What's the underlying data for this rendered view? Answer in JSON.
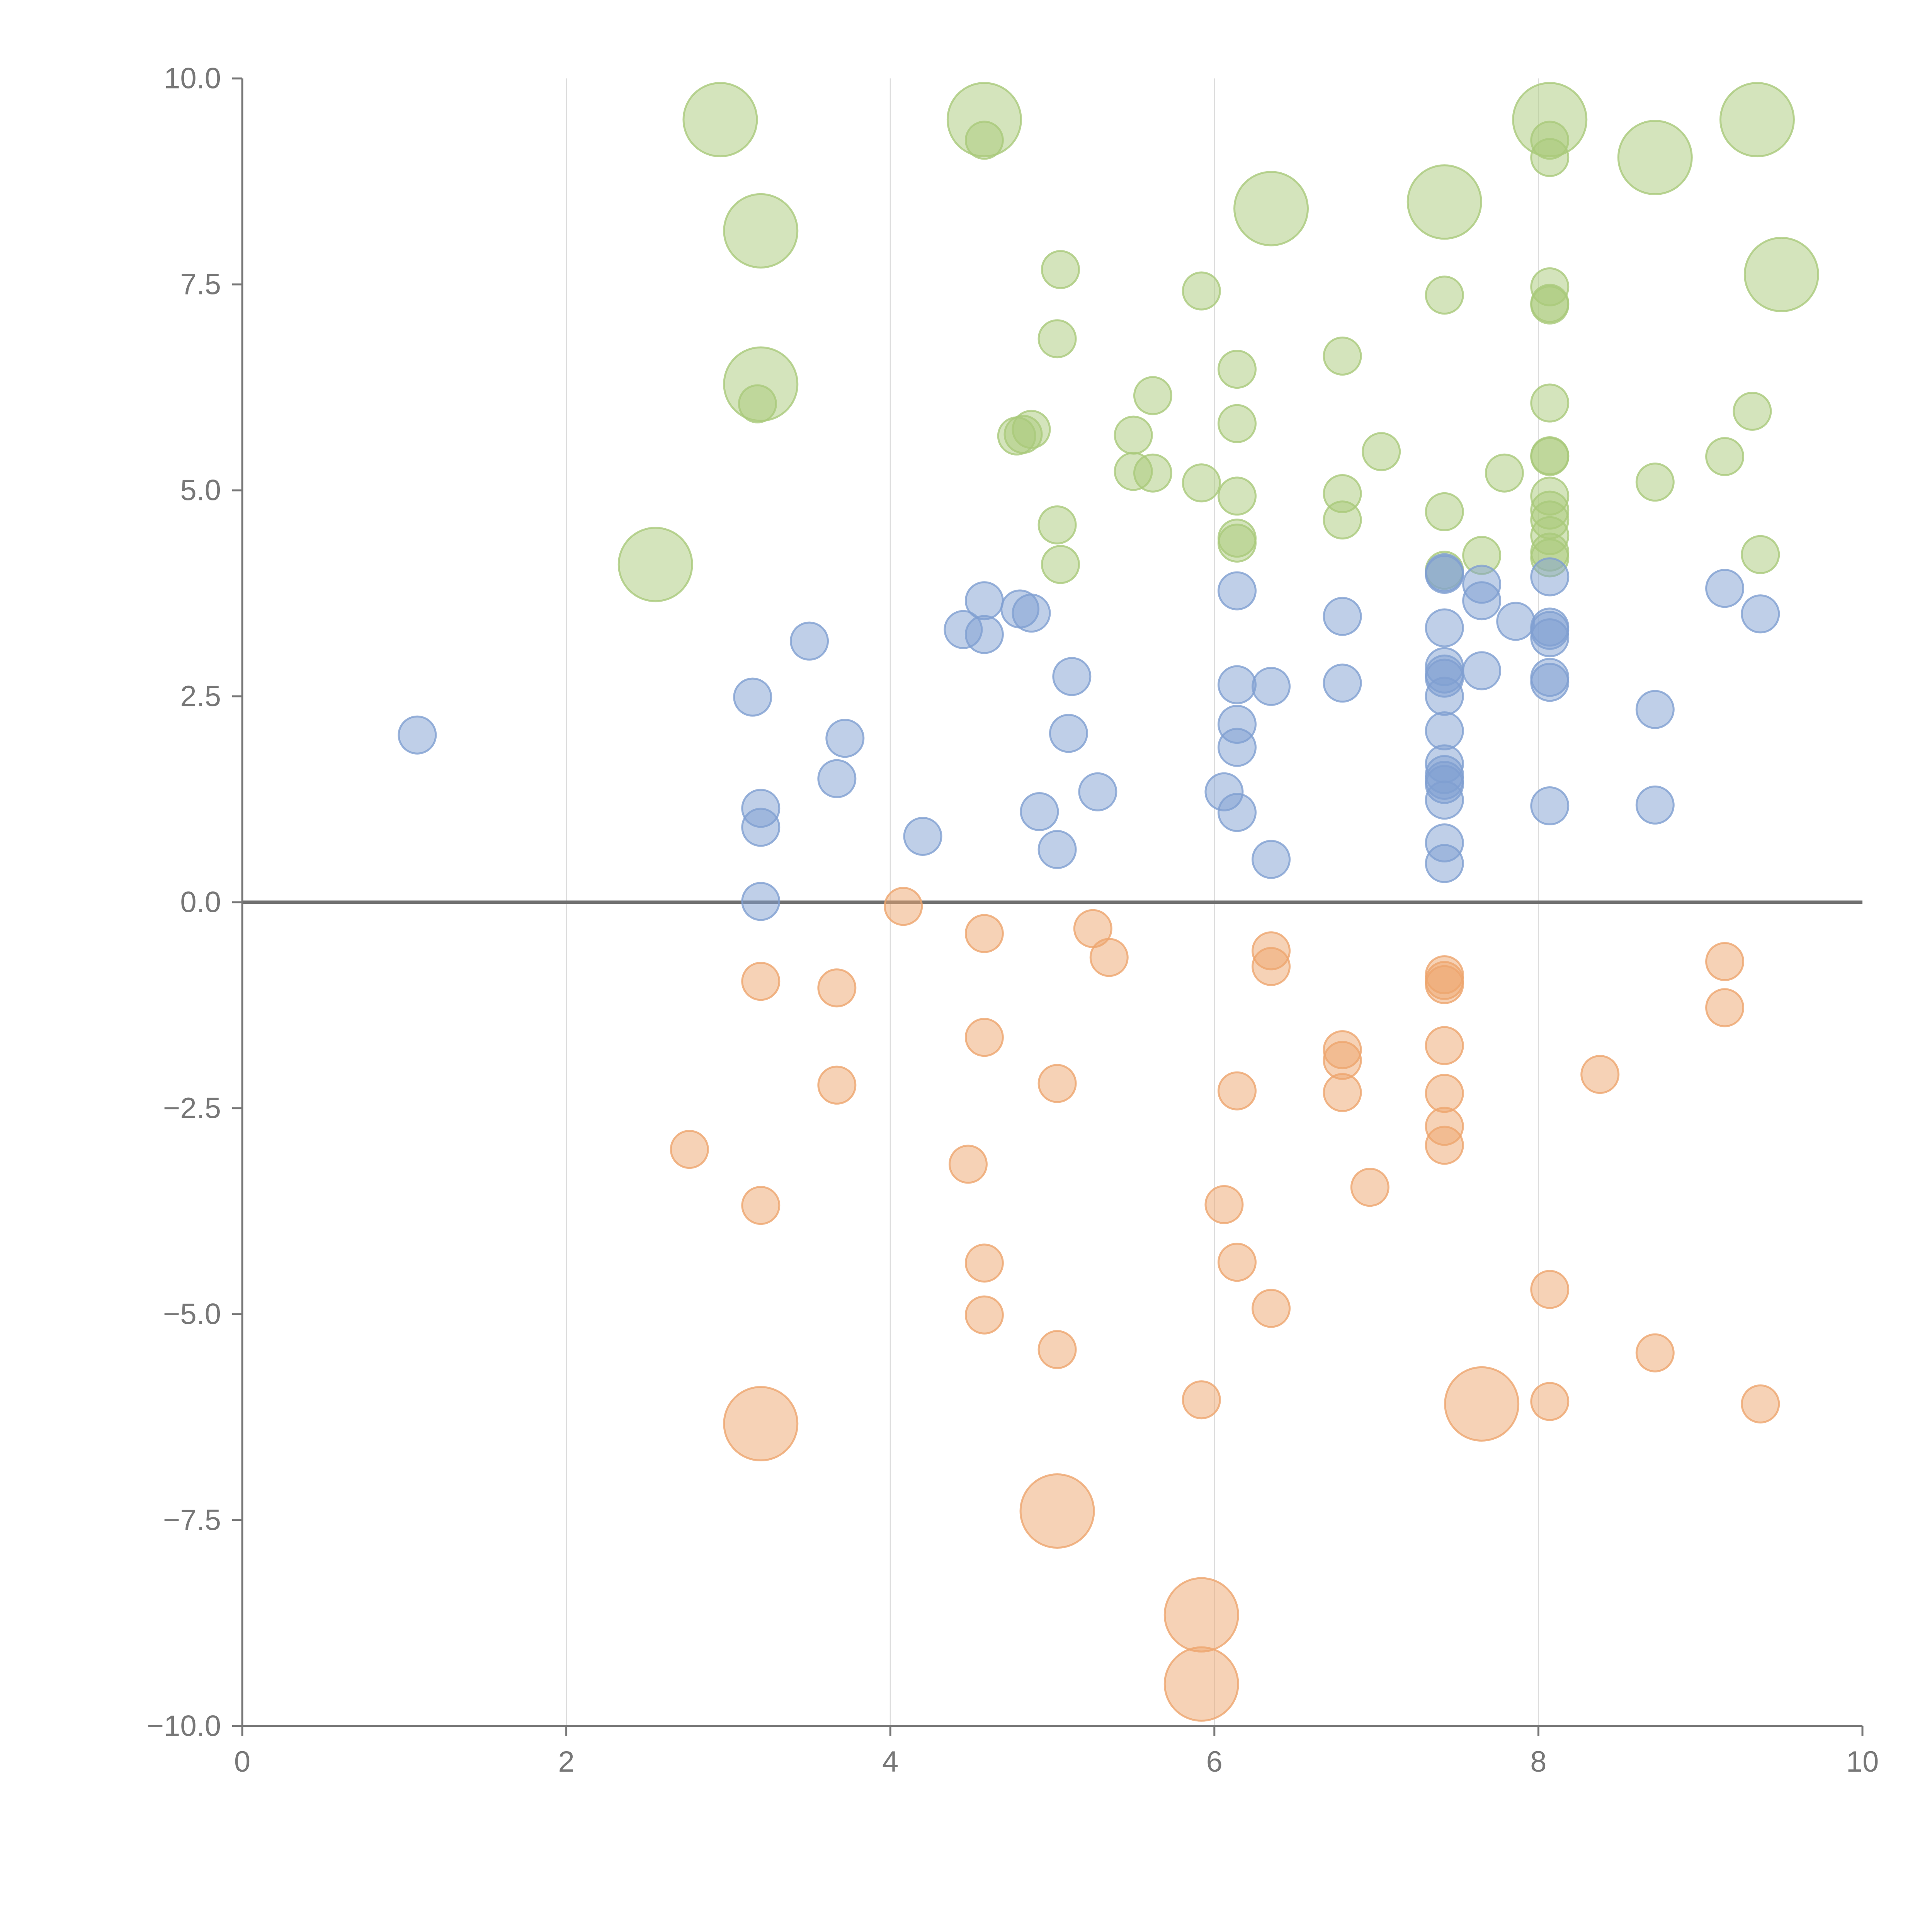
{
  "chart_data": {
    "type": "scatter",
    "variant": "bubble",
    "title": "",
    "xlabel": "",
    "ylabel": "",
    "xlim": [
      0,
      10
    ],
    "ylim": [
      -10,
      10
    ],
    "x_ticks": [
      0,
      2,
      4,
      6,
      8,
      10
    ],
    "x_tick_labels": [
      "0",
      "2",
      "4",
      "6",
      "8",
      "10"
    ],
    "y_ticks": [
      -10,
      -7.5,
      -5,
      -2.5,
      0,
      2.5,
      5,
      7.5,
      10
    ],
    "y_tick_labels": [
      "−10.0",
      "−7.5",
      "−5.0",
      "−2.5",
      "0.0",
      "2.5",
      "5.0",
      "7.5",
      "10.0"
    ],
    "grid": {
      "vertical": true,
      "horizontal": false
    },
    "reference_line": {
      "y": 0
    },
    "colors": {
      "green": "#a9c97a",
      "blue": "#7f9fd1",
      "orange": "#eea56e",
      "axis": "#777777",
      "grid": "#dcdcdc"
    },
    "series": [
      {
        "name": "green",
        "color": "#a9c97a",
        "points": [
          {
            "x": 2.95,
            "y": 9.5,
            "size": 3
          },
          {
            "x": 4.58,
            "y": 9.5,
            "size": 3
          },
          {
            "x": 4.58,
            "y": 9.25,
            "size": 1
          },
          {
            "x": 8.07,
            "y": 9.5,
            "size": 3
          },
          {
            "x": 8.07,
            "y": 9.25,
            "size": 1
          },
          {
            "x": 8.07,
            "y": 9.04,
            "size": 1
          },
          {
            "x": 9.35,
            "y": 9.5,
            "size": 3
          },
          {
            "x": 8.72,
            "y": 9.04,
            "size": 3
          },
          {
            "x": 3.2,
            "y": 8.15,
            "size": 3
          },
          {
            "x": 7.42,
            "y": 8.5,
            "size": 3
          },
          {
            "x": 6.35,
            "y": 8.42,
            "size": 3
          },
          {
            "x": 9.5,
            "y": 7.62,
            "size": 3
          },
          {
            "x": 5.05,
            "y": 7.68,
            "size": 1
          },
          {
            "x": 5.92,
            "y": 7.42,
            "size": 1
          },
          {
            "x": 7.42,
            "y": 7.37,
            "size": 1
          },
          {
            "x": 8.07,
            "y": 7.47,
            "size": 1
          },
          {
            "x": 8.07,
            "y": 7.27,
            "size": 1
          },
          {
            "x": 8.07,
            "y": 7.25,
            "size": 1
          },
          {
            "x": 5.03,
            "y": 6.84,
            "size": 1
          },
          {
            "x": 6.79,
            "y": 6.63,
            "size": 1
          },
          {
            "x": 6.14,
            "y": 6.47,
            "size": 1
          },
          {
            "x": 3.2,
            "y": 6.29,
            "size": 3
          },
          {
            "x": 3.18,
            "y": 6.05,
            "size": 1
          },
          {
            "x": 5.62,
            "y": 6.15,
            "size": 1
          },
          {
            "x": 8.07,
            "y": 6.06,
            "size": 1
          },
          {
            "x": 9.32,
            "y": 5.96,
            "size": 1
          },
          {
            "x": 6.14,
            "y": 5.81,
            "size": 1
          },
          {
            "x": 4.87,
            "y": 5.74,
            "size": 1
          },
          {
            "x": 4.82,
            "y": 5.68,
            "size": 1
          },
          {
            "x": 4.78,
            "y": 5.66,
            "size": 1
          },
          {
            "x": 5.5,
            "y": 5.67,
            "size": 1
          },
          {
            "x": 7.03,
            "y": 5.47,
            "size": 1
          },
          {
            "x": 8.07,
            "y": 5.42,
            "size": 1
          },
          {
            "x": 8.07,
            "y": 5.41,
            "size": 1
          },
          {
            "x": 9.15,
            "y": 5.41,
            "size": 1
          },
          {
            "x": 5.5,
            "y": 5.23,
            "size": 1
          },
          {
            "x": 5.62,
            "y": 5.21,
            "size": 1
          },
          {
            "x": 7.79,
            "y": 5.21,
            "size": 1
          },
          {
            "x": 5.92,
            "y": 5.09,
            "size": 1
          },
          {
            "x": 8.72,
            "y": 5.1,
            "size": 1
          },
          {
            "x": 6.79,
            "y": 4.96,
            "size": 1
          },
          {
            "x": 6.14,
            "y": 4.93,
            "size": 1
          },
          {
            "x": 8.07,
            "y": 4.93,
            "size": 1
          },
          {
            "x": 8.07,
            "y": 4.76,
            "size": 1
          },
          {
            "x": 7.42,
            "y": 4.74,
            "size": 1
          },
          {
            "x": 6.79,
            "y": 4.64,
            "size": 1
          },
          {
            "x": 8.07,
            "y": 4.64,
            "size": 1
          },
          {
            "x": 5.03,
            "y": 4.58,
            "size": 1
          },
          {
            "x": 8.07,
            "y": 4.45,
            "size": 1
          },
          {
            "x": 6.14,
            "y": 4.42,
            "size": 1
          },
          {
            "x": 6.14,
            "y": 4.36,
            "size": 1
          },
          {
            "x": 8.07,
            "y": 4.25,
            "size": 1
          },
          {
            "x": 9.37,
            "y": 4.22,
            "size": 1
          },
          {
            "x": 7.65,
            "y": 4.21,
            "size": 1
          },
          {
            "x": 8.07,
            "y": 4.18,
            "size": 1
          },
          {
            "x": 2.55,
            "y": 4.1,
            "size": 3
          },
          {
            "x": 5.05,
            "y": 4.1,
            "size": 1
          },
          {
            "x": 7.42,
            "y": 4.03,
            "size": 1
          }
        ]
      },
      {
        "name": "blue",
        "color": "#7f9fd1",
        "points": [
          {
            "x": 7.42,
            "y": 4.0,
            "size": 1
          },
          {
            "x": 7.42,
            "y": 3.98,
            "size": 1
          },
          {
            "x": 8.07,
            "y": 3.95,
            "size": 1
          },
          {
            "x": 7.65,
            "y": 3.86,
            "size": 1
          },
          {
            "x": 6.14,
            "y": 3.78,
            "size": 1
          },
          {
            "x": 9.15,
            "y": 3.81,
            "size": 1
          },
          {
            "x": 7.65,
            "y": 3.66,
            "size": 1
          },
          {
            "x": 4.58,
            "y": 3.66,
            "size": 1
          },
          {
            "x": 4.8,
            "y": 3.56,
            "size": 1
          },
          {
            "x": 4.87,
            "y": 3.51,
            "size": 1
          },
          {
            "x": 6.79,
            "y": 3.47,
            "size": 1
          },
          {
            "x": 9.37,
            "y": 3.5,
            "size": 1
          },
          {
            "x": 7.86,
            "y": 3.41,
            "size": 1
          },
          {
            "x": 8.07,
            "y": 3.34,
            "size": 1
          },
          {
            "x": 7.42,
            "y": 3.33,
            "size": 1
          },
          {
            "x": 4.45,
            "y": 3.31,
            "size": 1
          },
          {
            "x": 8.07,
            "y": 3.3,
            "size": 1
          },
          {
            "x": 4.58,
            "y": 3.25,
            "size": 1
          },
          {
            "x": 8.07,
            "y": 3.21,
            "size": 1
          },
          {
            "x": 3.5,
            "y": 3.17,
            "size": 1
          },
          {
            "x": 7.42,
            "y": 2.86,
            "size": 1
          },
          {
            "x": 7.65,
            "y": 2.81,
            "size": 1
          },
          {
            "x": 7.42,
            "y": 2.77,
            "size": 1
          },
          {
            "x": 5.12,
            "y": 2.74,
            "size": 1
          },
          {
            "x": 8.07,
            "y": 2.73,
            "size": 1
          },
          {
            "x": 7.42,
            "y": 2.72,
            "size": 1
          },
          {
            "x": 8.07,
            "y": 2.67,
            "size": 1
          },
          {
            "x": 6.79,
            "y": 2.66,
            "size": 1
          },
          {
            "x": 6.14,
            "y": 2.64,
            "size": 1
          },
          {
            "x": 6.35,
            "y": 2.62,
            "size": 1
          },
          {
            "x": 3.15,
            "y": 2.49,
            "size": 1
          },
          {
            "x": 7.42,
            "y": 2.5,
            "size": 1
          },
          {
            "x": 8.72,
            "y": 2.34,
            "size": 1
          },
          {
            "x": 6.14,
            "y": 2.16,
            "size": 1
          },
          {
            "x": 7.42,
            "y": 2.08,
            "size": 1
          },
          {
            "x": 5.1,
            "y": 2.05,
            "size": 1
          },
          {
            "x": 1.08,
            "y": 2.03,
            "size": 1
          },
          {
            "x": 3.72,
            "y": 1.99,
            "size": 1
          },
          {
            "x": 6.14,
            "y": 1.88,
            "size": 1
          },
          {
            "x": 7.42,
            "y": 1.68,
            "size": 1
          },
          {
            "x": 7.42,
            "y": 1.55,
            "size": 1
          },
          {
            "x": 7.42,
            "y": 1.48,
            "size": 1
          },
          {
            "x": 3.67,
            "y": 1.5,
            "size": 1
          },
          {
            "x": 7.42,
            "y": 1.43,
            "size": 1
          },
          {
            "x": 6.06,
            "y": 1.34,
            "size": 1
          },
          {
            "x": 5.28,
            "y": 1.34,
            "size": 1
          },
          {
            "x": 7.42,
            "y": 1.24,
            "size": 1
          },
          {
            "x": 8.07,
            "y": 1.17,
            "size": 1
          },
          {
            "x": 8.72,
            "y": 1.18,
            "size": 1
          },
          {
            "x": 3.2,
            "y": 1.14,
            "size": 1
          },
          {
            "x": 4.92,
            "y": 1.1,
            "size": 1
          },
          {
            "x": 6.14,
            "y": 1.09,
            "size": 1
          },
          {
            "x": 3.2,
            "y": 0.91,
            "size": 1
          },
          {
            "x": 4.2,
            "y": 0.8,
            "size": 1
          },
          {
            "x": 7.42,
            "y": 0.72,
            "size": 1
          },
          {
            "x": 5.03,
            "y": 0.64,
            "size": 1
          },
          {
            "x": 6.35,
            "y": 0.52,
            "size": 1
          },
          {
            "x": 7.42,
            "y": 0.47,
            "size": 1
          },
          {
            "x": 3.2,
            "y": 0.01,
            "size": 1
          }
        ]
      },
      {
        "name": "orange",
        "color": "#eea56e",
        "points": [
          {
            "x": 4.08,
            "y": -0.05,
            "size": 1
          },
          {
            "x": 5.25,
            "y": -0.32,
            "size": 1
          },
          {
            "x": 4.58,
            "y": -0.38,
            "size": 1
          },
          {
            "x": 6.35,
            "y": -0.59,
            "size": 1
          },
          {
            "x": 5.35,
            "y": -0.67,
            "size": 1
          },
          {
            "x": 9.15,
            "y": -0.72,
            "size": 1
          },
          {
            "x": 6.35,
            "y": -0.78,
            "size": 1
          },
          {
            "x": 7.42,
            "y": -0.88,
            "size": 1
          },
          {
            "x": 7.42,
            "y": -0.95,
            "size": 1
          },
          {
            "x": 3.2,
            "y": -0.96,
            "size": 1
          },
          {
            "x": 7.42,
            "y": -1.0,
            "size": 1
          },
          {
            "x": 3.67,
            "y": -1.04,
            "size": 1
          },
          {
            "x": 9.15,
            "y": -1.28,
            "size": 1
          },
          {
            "x": 4.58,
            "y": -1.64,
            "size": 1
          },
          {
            "x": 7.42,
            "y": -1.74,
            "size": 1
          },
          {
            "x": 6.79,
            "y": -1.79,
            "size": 1
          },
          {
            "x": 6.79,
            "y": -1.92,
            "size": 1
          },
          {
            "x": 8.38,
            "y": -2.09,
            "size": 1
          },
          {
            "x": 3.67,
            "y": -2.22,
            "size": 1
          },
          {
            "x": 5.03,
            "y": -2.2,
            "size": 1
          },
          {
            "x": 6.14,
            "y": -2.29,
            "size": 1
          },
          {
            "x": 6.79,
            "y": -2.31,
            "size": 1
          },
          {
            "x": 7.42,
            "y": -2.32,
            "size": 1
          },
          {
            "x": 7.42,
            "y": -2.72,
            "size": 1
          },
          {
            "x": 7.42,
            "y": -2.95,
            "size": 1
          },
          {
            "x": 2.76,
            "y": -3.0,
            "size": 1
          },
          {
            "x": 4.48,
            "y": -3.18,
            "size": 1
          },
          {
            "x": 6.96,
            "y": -3.46,
            "size": 1
          },
          {
            "x": 6.06,
            "y": -3.67,
            "size": 1
          },
          {
            "x": 3.2,
            "y": -3.68,
            "size": 1
          },
          {
            "x": 6.14,
            "y": -4.37,
            "size": 1
          },
          {
            "x": 4.58,
            "y": -4.38,
            "size": 1
          },
          {
            "x": 8.07,
            "y": -4.7,
            "size": 1
          },
          {
            "x": 6.35,
            "y": -4.93,
            "size": 1
          },
          {
            "x": 4.58,
            "y": -5.01,
            "size": 1
          },
          {
            "x": 5.03,
            "y": -5.43,
            "size": 1
          },
          {
            "x": 8.72,
            "y": -5.47,
            "size": 1
          },
          {
            "x": 5.92,
            "y": -6.04,
            "size": 1
          },
          {
            "x": 8.07,
            "y": -6.06,
            "size": 1
          },
          {
            "x": 9.37,
            "y": -6.09,
            "size": 1
          },
          {
            "x": 7.65,
            "y": -6.09,
            "size": 3
          },
          {
            "x": 3.2,
            "y": -6.33,
            "size": 3
          },
          {
            "x": 5.03,
            "y": -7.39,
            "size": 3
          },
          {
            "x": 5.92,
            "y": -8.65,
            "size": 3
          },
          {
            "x": 5.92,
            "y": -9.49,
            "size": 3
          }
        ]
      }
    ]
  }
}
